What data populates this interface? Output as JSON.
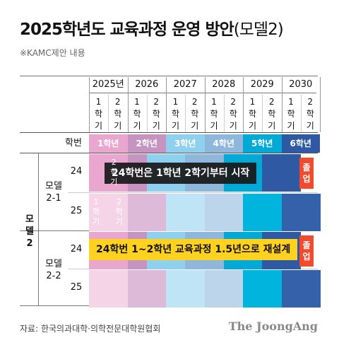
{
  "title": "2025학년도 교육과정 운영 방안",
  "title_suffix": "(모델2)",
  "subtitle": "※KAMC제안 내용",
  "table": {
    "years": [
      "2025년",
      "2026",
      "2027",
      "2028",
      "2029",
      "2030"
    ],
    "semester_labels": [
      "1\n학\n기",
      "2\n학\n기"
    ],
    "haksun_header": "학번",
    "grade_headers": [
      "1학년",
      "2학년",
      "3학년",
      "4학년",
      "5학년",
      "6학년"
    ],
    "grade_colors": [
      "#e9a7cf",
      "#c594c0",
      "#8fd0ef",
      "#8fb7dc",
      "#00a9d6",
      "#2f59a2"
    ],
    "model2_label": "모\n델\n2",
    "models": [
      {
        "label": "모델\n2-1",
        "rows": [
          {
            "haksun": "24",
            "semesters": [
              1,
              1,
              2,
              3,
              3,
              4,
              4,
              5,
              5,
              6,
              6,
              0
            ]
          },
          {
            "haksun": "25",
            "semesters": [
              1,
              1,
              2,
              2,
              3,
              3,
              4,
              4,
              5,
              5,
              6,
              6
            ]
          }
        ],
        "overlay": "24학번은 1학년 2학기부터 시작",
        "graduation": "졸\n업",
        "row1_start_label": "2\n학\n기",
        "row2_start_labels": [
          "1\n학\n기",
          "2\n학\n기"
        ]
      },
      {
        "label": "모델\n2-2",
        "rows": [
          {
            "haksun": "24",
            "semesters": [
              1,
              1,
              2,
              3,
              3,
              4,
              4,
              5,
              5,
              6,
              6,
              0
            ]
          },
          {
            "haksun": "25",
            "semesters": [
              1,
              1,
              2,
              2,
              3,
              3,
              4,
              4,
              5,
              5,
              6,
              6
            ]
          }
        ],
        "overlay": "24학번 1~2학년 교육과정 1.5년으로 재설계",
        "graduation": "졸\n업"
      }
    ]
  },
  "source": "자료: 한국의과대학·의학전문대학원협회",
  "logo": "The JoongAng"
}
